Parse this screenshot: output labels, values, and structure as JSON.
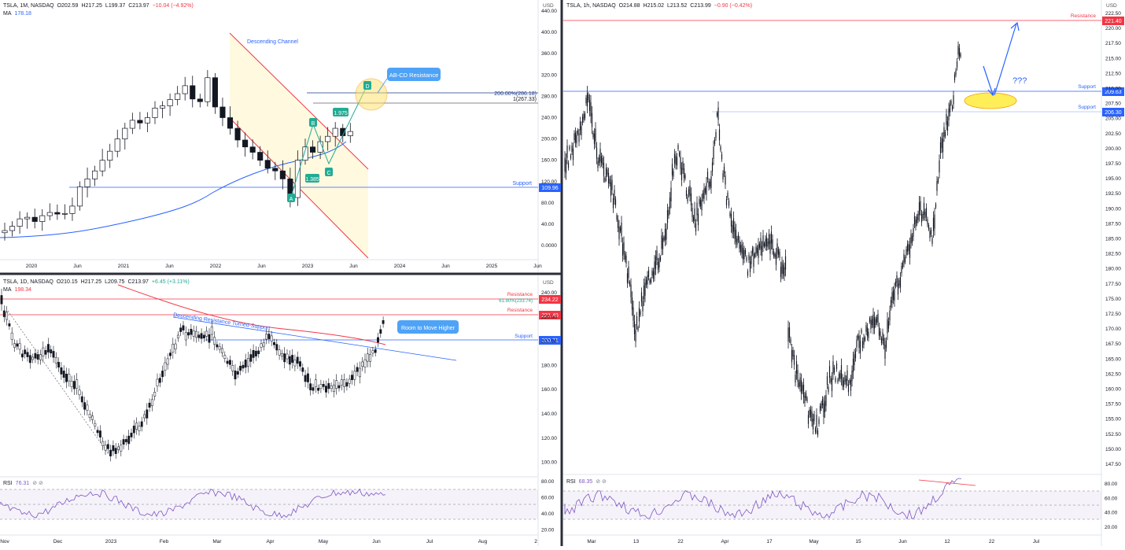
{
  "chart_data": [
    {
      "type": "candlestick",
      "symbol": "TSLA",
      "interval": "1M",
      "exchange": "NASDAQ",
      "ohlc": {
        "o": "O202.59",
        "h": "H217.25",
        "l": "L199.37",
        "c": "C213.97",
        "chg": "−10.04 (−4.92%)"
      },
      "ma_label": "MA",
      "ma_value": "178.18",
      "currency": "USD",
      "y_ticks": [
        "440.00",
        "400.00",
        "360.00",
        "320.00",
        "280.00",
        "240.00",
        "200.00",
        "160.00",
        "120.00",
        "80.00",
        "40.00",
        "0.0000"
      ],
      "x_ticks": [
        "2020",
        "Jun",
        "2021",
        "Jun",
        "2022",
        "Jun",
        "2023",
        "Jun",
        "2024",
        "Jun",
        "2025",
        "Jun"
      ],
      "annotations": {
        "channel": "Descending Channel",
        "abcd": "AB-CD Resistance",
        "fib_200": "200.00%(286.18)",
        "fib_1": "1(267.33)",
        "ratio": "1.975",
        "ratio2": "1.385",
        "support": "Support",
        "point_a": "A",
        "point_b": "B",
        "point_c": "C",
        "point_d": "D"
      },
      "levels": {
        "support": "109.96"
      },
      "closes": [
        28,
        36,
        50,
        53,
        45,
        56,
        62,
        59,
        60,
        74,
        110,
        125,
        140,
        160,
        177,
        200,
        220,
        235,
        230,
        240,
        258,
        262,
        274,
        285,
        300,
        275,
        270,
        315,
        260,
        240,
        220,
        198,
        185,
        175,
        160,
        145,
        140,
        125,
        90,
        160,
        185,
        175,
        195,
        205,
        220,
        206,
        214
      ]
    },
    {
      "type": "candlestick",
      "symbol": "TSLA",
      "interval": "1D",
      "exchange": "NASDAQ",
      "ohlc": {
        "o": "O210.15",
        "h": "H217.25",
        "l": "L209.75",
        "c": "C213.97",
        "chg": "+6.45 (+3.11%)"
      },
      "ma_label": "MA",
      "ma_value": "198.34",
      "currency": "USD",
      "y_ticks": [
        "240.00",
        "220.00",
        "200.00",
        "180.00",
        "160.00",
        "140.00",
        "120.00",
        "100.00"
      ],
      "x_ticks": [
        "Nov",
        "Dec",
        "2023",
        "Feb",
        "Mar",
        "Apr",
        "May",
        "Jun",
        "Jul",
        "Aug",
        "2"
      ],
      "annotations": {
        "descending": "Descending Resistance Turned-Support",
        "room": "Room to Move Higher",
        "resistance1": "Resistance",
        "resistance2": "Resistance",
        "support": "Support",
        "fib": "61.80%(233.74)"
      },
      "levels": {
        "r1": "234.22",
        "r2": "221.40",
        "s": "200.71"
      },
      "rsi_label": "RSI",
      "rsi_value": "76.31",
      "rsi_ticks": [
        "80.00",
        "60.00",
        "40.00",
        "20.00"
      ]
    },
    {
      "type": "candlestick",
      "symbol": "TSLA",
      "interval": "1h",
      "exchange": "NASDAQ",
      "ohlc": {
        "o": "O214.88",
        "h": "H215.02",
        "l": "L213.52",
        "c": "C213.99",
        "chg": "−0.90 (−0.42%)"
      },
      "currency": "USD",
      "y_ticks": [
        "222.50",
        "220.00",
        "217.50",
        "215.00",
        "212.50",
        "210.00",
        "207.50",
        "205.00",
        "202.50",
        "200.00",
        "197.50",
        "195.00",
        "192.50",
        "190.00",
        "187.50",
        "185.00",
        "182.50",
        "180.00",
        "177.50",
        "175.00",
        "172.50",
        "170.00",
        "167.50",
        "165.00",
        "162.50",
        "160.00",
        "157.50",
        "155.00",
        "152.50",
        "150.00",
        "147.50"
      ],
      "x_ticks": [
        "Mar",
        "13",
        "22",
        "Apr",
        "17",
        "May",
        "15",
        "Jun",
        "12",
        "22",
        "Jul"
      ],
      "annotations": {
        "resistance": "Resistance",
        "support1": "Support",
        "support2": "Support",
        "question": "???"
      },
      "levels": {
        "r": "221.40",
        "s1": "209.63",
        "s2": "206.30"
      },
      "rsi_label": "RSI",
      "rsi_value": "68.35",
      "rsi_ticks": [
        "80.00",
        "60.00",
        "40.00",
        "20.00"
      ]
    }
  ],
  "ui": {
    "flag_icon": "⊘ ⊘"
  }
}
